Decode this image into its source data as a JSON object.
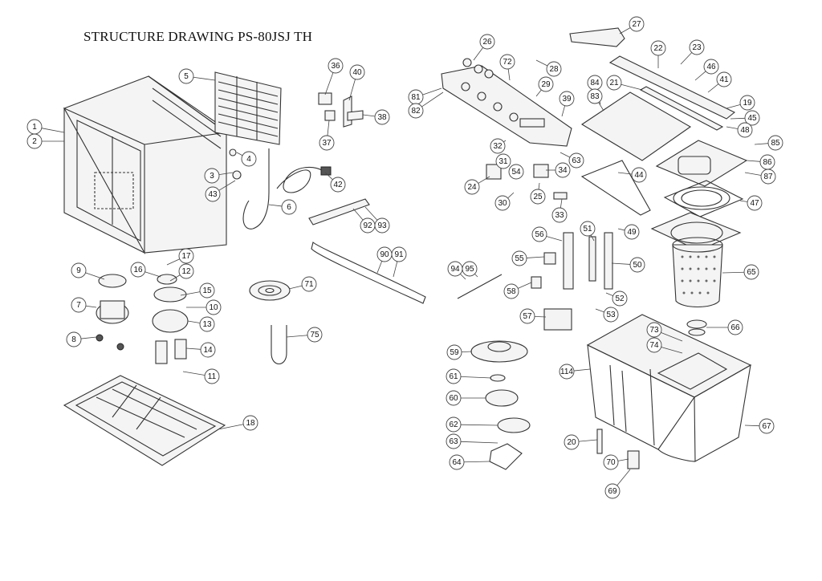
{
  "title": "STRUCTURE DRAWING PS-80JSJ TH",
  "callouts": [
    {
      "label": "1"
    },
    {
      "label": "2"
    },
    {
      "label": "5"
    },
    {
      "label": "36"
    },
    {
      "label": "40"
    },
    {
      "label": "38"
    },
    {
      "label": "37"
    },
    {
      "label": "4"
    },
    {
      "label": "3"
    },
    {
      "label": "43"
    },
    {
      "label": "42"
    },
    {
      "label": "6"
    },
    {
      "label": "92"
    },
    {
      "label": "93"
    },
    {
      "label": "17"
    },
    {
      "label": "9"
    },
    {
      "label": "16"
    },
    {
      "label": "12"
    },
    {
      "label": "15"
    },
    {
      "label": "7"
    },
    {
      "label": "10"
    },
    {
      "label": "13"
    },
    {
      "label": "8"
    },
    {
      "label": "14"
    },
    {
      "label": "11"
    },
    {
      "label": "18"
    },
    {
      "label": "71"
    },
    {
      "label": "75"
    },
    {
      "label": "90"
    },
    {
      "label": "91"
    },
    {
      "label": "26"
    },
    {
      "label": "27"
    },
    {
      "label": "72"
    },
    {
      "label": "28"
    },
    {
      "label": "29"
    },
    {
      "label": "81"
    },
    {
      "label": "82"
    },
    {
      "label": "22"
    },
    {
      "label": "23"
    },
    {
      "label": "46"
    },
    {
      "label": "84"
    },
    {
      "label": "21"
    },
    {
      "label": "41"
    },
    {
      "label": "39"
    },
    {
      "label": "83"
    },
    {
      "label": "19"
    },
    {
      "label": "45"
    },
    {
      "label": "48"
    },
    {
      "label": "85"
    },
    {
      "label": "32"
    },
    {
      "label": "31"
    },
    {
      "label": "63"
    },
    {
      "label": "54"
    },
    {
      "label": "34"
    },
    {
      "label": "86"
    },
    {
      "label": "87"
    },
    {
      "label": "24"
    },
    {
      "label": "44"
    },
    {
      "label": "25"
    },
    {
      "label": "30"
    },
    {
      "label": "47"
    },
    {
      "label": "33"
    },
    {
      "label": "51"
    },
    {
      "label": "49"
    },
    {
      "label": "56"
    },
    {
      "label": "55"
    },
    {
      "label": "50"
    },
    {
      "label": "94"
    },
    {
      "label": "95"
    },
    {
      "label": "65"
    },
    {
      "label": "58"
    },
    {
      "label": "52"
    },
    {
      "label": "57"
    },
    {
      "label": "53"
    },
    {
      "label": "66"
    },
    {
      "label": "73"
    },
    {
      "label": "74"
    },
    {
      "label": "59"
    },
    {
      "label": "114"
    },
    {
      "label": "61"
    },
    {
      "label": "60"
    },
    {
      "label": "62"
    },
    {
      "label": "67"
    },
    {
      "label": "63"
    },
    {
      "label": "20"
    },
    {
      "label": "64"
    },
    {
      "label": "70"
    },
    {
      "label": "69"
    }
  ]
}
